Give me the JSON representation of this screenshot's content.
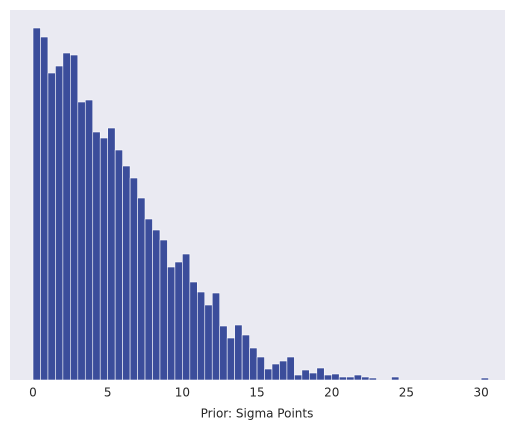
{
  "chart_data": {
    "type": "histogram",
    "xlabel": "Prior: Sigma Points",
    "bins": [
      0,
      0.5,
      1,
      1.5,
      2,
      2.5,
      3,
      3.5,
      4,
      4.5,
      5,
      5.5,
      6,
      6.5,
      7,
      7.5,
      8,
      8.5,
      9,
      9.5,
      10,
      10.5,
      11,
      11.5,
      12,
      12.5,
      13,
      13.5,
      14,
      14.5,
      15,
      15.5,
      16,
      16.5,
      17,
      17.5,
      18,
      18.5,
      19,
      19.5,
      20,
      20.5,
      21,
      21.5,
      22,
      22.5,
      23,
      23.5,
      24,
      24.5,
      25,
      25.5,
      26,
      26.5,
      27,
      27.5,
      28,
      28.5,
      29,
      29.5,
      30,
      30.5
    ],
    "values": [
      352,
      343,
      307,
      314,
      327,
      325,
      278,
      280,
      248,
      242,
      252,
      230,
      214,
      202,
      182,
      161,
      150,
      140,
      113,
      118,
      126,
      98,
      88,
      75,
      87,
      54,
      42,
      55,
      45,
      32,
      23,
      11,
      16,
      19,
      23,
      5,
      10,
      7,
      12,
      5,
      6,
      3,
      3,
      5,
      3,
      2,
      0,
      0,
      3,
      0,
      0,
      0,
      0,
      0,
      0,
      0,
      0,
      0,
      0,
      0,
      2
    ],
    "color": "#3b4d9b",
    "xlim": [
      -1.54,
      31.6
    ],
    "ylim": [
      0,
      370
    ],
    "xticks": [
      0,
      5,
      10,
      15,
      20,
      25,
      30
    ],
    "grid": false
  }
}
